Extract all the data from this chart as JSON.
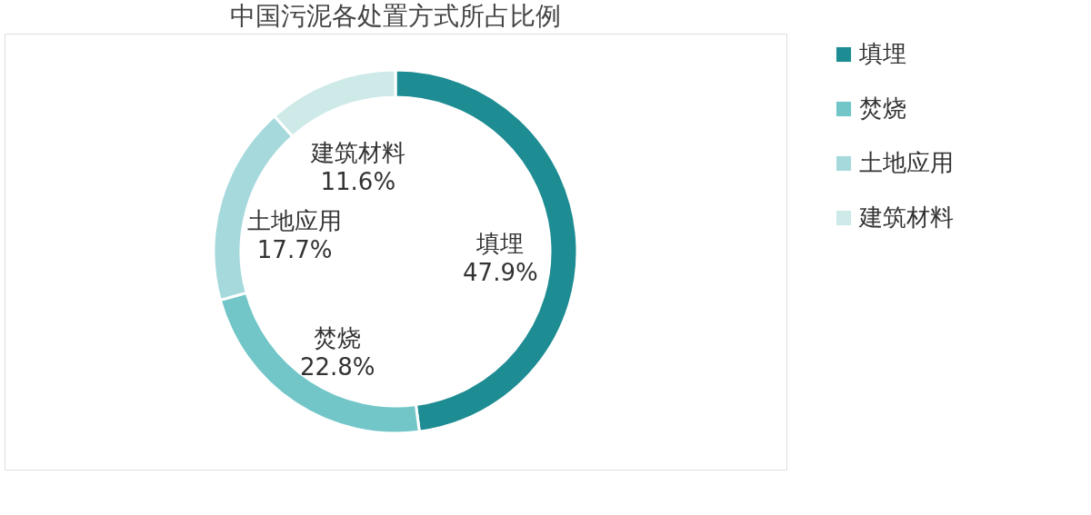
{
  "chart_data": {
    "type": "donut",
    "title": "中国污泥各处置方式所占比例",
    "categories": [
      "填埋",
      "焚烧",
      "土地应用",
      "建筑材料"
    ],
    "values": [
      47.9,
      22.8,
      17.7,
      11.6
    ],
    "colors": [
      "#1e8c93",
      "#72c6c8",
      "#a6d9dc",
      "#cde9e8"
    ],
    "value_labels": [
      "47.9%",
      "22.8%",
      "17.7%",
      "11.6%"
    ],
    "legend": "right"
  }
}
